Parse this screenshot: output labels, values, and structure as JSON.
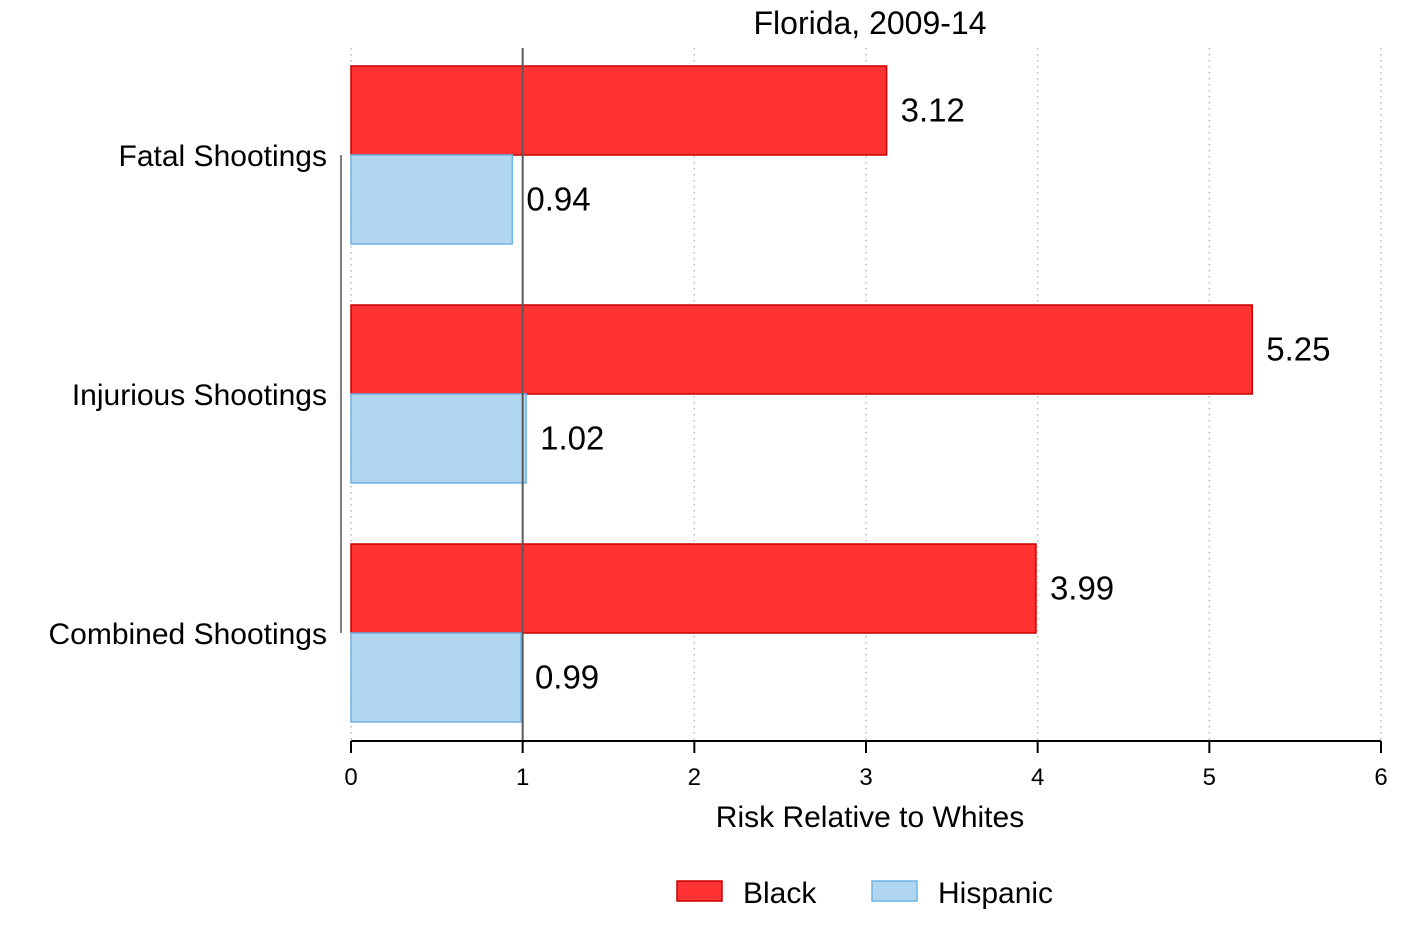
{
  "chart_data": {
    "type": "bar",
    "orientation": "horizontal",
    "title": "Florida, 2009-14",
    "xlabel": "Risk Relative to Whites",
    "ylabel": "",
    "categories": [
      "Fatal Shootings",
      "Injurious Shootings",
      "Combined Shootings"
    ],
    "series": [
      {
        "name": "Black",
        "values": [
          3.12,
          5.25,
          3.99
        ],
        "color": "#ff3333",
        "edge_color": "#cc0000"
      },
      {
        "name": "Hispanic",
        "values": [
          0.94,
          1.02,
          0.99
        ],
        "color": "#b0d6f0",
        "edge_color": "#6fb4e6"
      }
    ],
    "data_labels": [
      [
        "3.12",
        "5.25",
        "3.99"
      ],
      [
        "0.94",
        "1.02",
        "0.99"
      ]
    ],
    "xlim": [
      0,
      6
    ],
    "xticks": [
      0,
      1,
      2,
      3,
      4,
      5,
      6
    ],
    "xtick_labels": [
      "0",
      "1",
      "2",
      "3",
      "4",
      "5",
      "6"
    ],
    "reference_line": 1,
    "grid": "vertical dotted",
    "legend": {
      "position": "bottom-center",
      "entries": [
        "Black",
        "Hispanic"
      ]
    }
  }
}
